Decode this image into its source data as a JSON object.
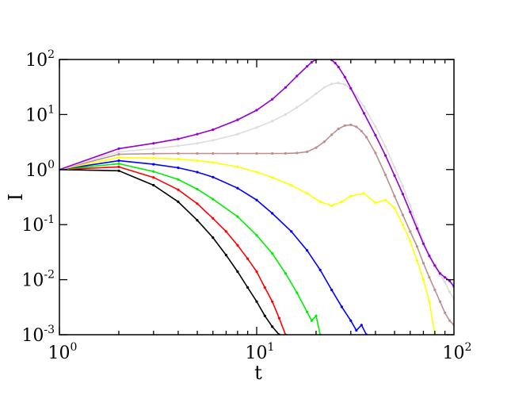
{
  "chart_data": {
    "type": "line",
    "title": "",
    "xlabel": "t",
    "ylabel": "I",
    "xscale": "log",
    "yscale": "log",
    "xlim": [
      1,
      100
    ],
    "ylim": [
      0.001,
      100
    ],
    "grid": false,
    "x_ticks": [
      {
        "base": "10",
        "exp": "0",
        "value": 1
      },
      {
        "base": "10",
        "exp": "1",
        "value": 10
      },
      {
        "base": "10",
        "exp": "2",
        "value": 100
      }
    ],
    "y_ticks": [
      {
        "base": "10",
        "exp": "-3",
        "value": 0.001
      },
      {
        "base": "10",
        "exp": "-2",
        "value": 0.01
      },
      {
        "base": "10",
        "exp": "-1",
        "value": 0.1
      },
      {
        "base": "10",
        "exp": "0",
        "value": 1
      },
      {
        "base": "10",
        "exp": "1",
        "value": 10
      },
      {
        "base": "10",
        "exp": "2",
        "value": 100
      }
    ],
    "series": [
      {
        "color": "#000000",
        "x": [
          1,
          2,
          3,
          4,
          5,
          6,
          7,
          8,
          9,
          10,
          11,
          12,
          13
        ],
        "y": [
          1.0,
          0.95,
          0.52,
          0.26,
          0.12,
          0.058,
          0.028,
          0.014,
          0.0072,
          0.004,
          0.0022,
          0.0014,
          0.001
        ]
      },
      {
        "color": "#ff0000",
        "x": [
          1,
          2,
          3,
          4,
          5,
          6,
          7,
          8,
          9,
          10,
          11,
          12,
          13,
          14
        ],
        "y": [
          1.0,
          1.12,
          0.72,
          0.43,
          0.24,
          0.13,
          0.075,
          0.042,
          0.024,
          0.014,
          0.0072,
          0.004,
          0.002,
          0.001
        ]
      },
      {
        "color": "#00ee00",
        "x": [
          1,
          2,
          3,
          4,
          5,
          6,
          8,
          10,
          12,
          14,
          16,
          18,
          19,
          20,
          21
        ],
        "y": [
          1.0,
          1.28,
          0.92,
          0.66,
          0.44,
          0.29,
          0.14,
          0.064,
          0.03,
          0.013,
          0.0058,
          0.0026,
          0.0018,
          0.0022,
          0.001
        ]
      },
      {
        "color": "#0000ff",
        "x": [
          1,
          2,
          3,
          4,
          5,
          6,
          8,
          10,
          12,
          15,
          18,
          21,
          24,
          27,
          30,
          32,
          34,
          36
        ],
        "y": [
          1.0,
          1.45,
          1.25,
          1.08,
          0.9,
          0.73,
          0.46,
          0.28,
          0.16,
          0.075,
          0.034,
          0.015,
          0.0065,
          0.0032,
          0.0018,
          0.0012,
          0.0015,
          0.001
        ]
      },
      {
        "color": "#ffff00",
        "x": [
          1,
          2,
          3,
          4,
          5,
          6,
          8,
          10,
          12,
          15,
          18,
          21,
          24,
          27,
          30,
          35,
          40,
          45,
          50,
          55,
          60,
          65,
          70,
          75,
          80
        ],
        "y": [
          1.0,
          1.65,
          1.62,
          1.55,
          1.45,
          1.35,
          1.12,
          0.9,
          0.72,
          0.52,
          0.37,
          0.26,
          0.22,
          0.26,
          0.33,
          0.37,
          0.25,
          0.28,
          0.2,
          0.1,
          0.05,
          0.022,
          0.01,
          0.004,
          0.001
        ]
      },
      {
        "color": "#bc8f8f",
        "x": [
          1,
          2,
          3,
          4,
          5,
          6,
          8,
          10,
          12,
          14,
          16,
          18,
          20,
          22,
          24,
          26,
          28,
          30,
          32,
          34,
          36,
          40,
          45,
          50,
          55,
          60,
          65,
          70,
          75,
          80,
          85,
          90,
          95,
          100
        ],
        "y": [
          1.0,
          1.9,
          1.95,
          1.96,
          1.96,
          1.96,
          1.96,
          1.96,
          1.96,
          1.97,
          2.0,
          2.1,
          2.5,
          3.2,
          4.3,
          5.5,
          6.3,
          6.5,
          6.0,
          5.0,
          3.9,
          2.0,
          0.8,
          0.33,
          0.15,
          0.075,
          0.04,
          0.02,
          0.011,
          0.0065,
          0.004,
          0.0025,
          0.0018,
          0.0015
        ]
      },
      {
        "color": "#dcdcdc",
        "x": [
          1,
          2,
          3,
          4,
          5,
          6,
          8,
          10,
          12,
          14,
          16,
          18,
          20,
          22,
          24,
          26,
          28,
          30,
          32,
          35,
          40,
          45,
          50,
          55,
          60,
          65,
          70,
          75,
          80,
          85,
          90,
          95,
          100
        ],
        "y": [
          1.0,
          2.1,
          2.4,
          2.7,
          3.0,
          3.4,
          4.4,
          5.8,
          7.6,
          10.0,
          13.5,
          18.0,
          24.0,
          31.0,
          36.0,
          37.5,
          35.0,
          29.0,
          22.0,
          14.0,
          6.0,
          2.6,
          1.1,
          0.5,
          0.22,
          0.1,
          0.05,
          0.028,
          0.018,
          0.012,
          0.009,
          0.006,
          0.0045
        ]
      },
      {
        "color": "#9400d3",
        "x": [
          1,
          2,
          3,
          4,
          5,
          6,
          8,
          10,
          12,
          14,
          16,
          18,
          19,
          20,
          21,
          22,
          23,
          24,
          25,
          26,
          28,
          30,
          35,
          40,
          45,
          50,
          55,
          60,
          65,
          70,
          75,
          80,
          85,
          90,
          95,
          100
        ],
        "y": [
          1.0,
          2.4,
          3.0,
          3.6,
          4.4,
          5.3,
          8.0,
          12.0,
          19.0,
          31.0,
          50.0,
          75.0,
          89.0,
          100.0,
          108.0,
          110.0,
          106.0,
          98.0,
          86.0,
          73.0,
          48.0,
          30.0,
          10.5,
          4.2,
          1.8,
          0.78,
          0.36,
          0.17,
          0.085,
          0.045,
          0.027,
          0.018,
          0.013,
          0.011,
          0.0095,
          0.0075
        ]
      }
    ]
  }
}
